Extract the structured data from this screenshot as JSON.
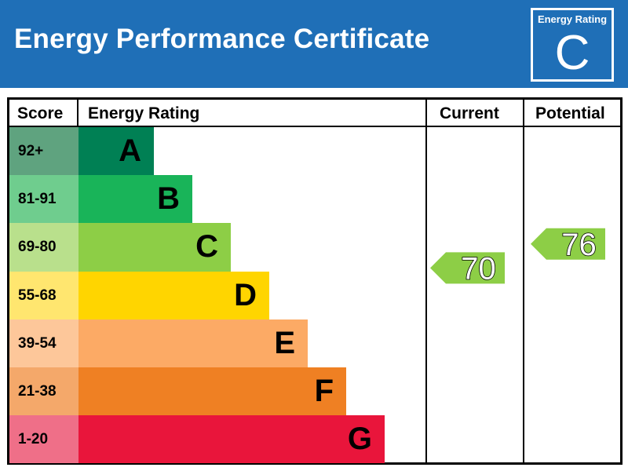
{
  "header": {
    "title": "Energy Performance Certificate",
    "rating_box_label": "Energy Rating",
    "rating_box_letter": "C",
    "background": "#1f6fb7"
  },
  "table": {
    "score_header": "Score",
    "rating_header": "Energy Rating",
    "current_header": "Current",
    "potential_header": "Potential"
  },
  "chart_data": {
    "type": "bar",
    "categories": [
      "A",
      "B",
      "C",
      "D",
      "E",
      "F",
      "G"
    ],
    "score_ranges": [
      "92+",
      "81-91",
      "69-80",
      "55-68",
      "39-54",
      "21-38",
      "1-20"
    ],
    "bar_colors": [
      "#008054",
      "#19b459",
      "#8dce46",
      "#ffd500",
      "#fcaa65",
      "#ef8023",
      "#e9153b"
    ],
    "score_cell_colors": [
      "#5fa37f",
      "#6fcd8e",
      "#b9e08c",
      "#ffe66f",
      "#fdc79a",
      "#f4a86a",
      "#ef6f88"
    ],
    "current": {
      "value": 70,
      "band": "C",
      "color": "#8dce46"
    },
    "potential": {
      "value": 76,
      "band": "C",
      "color": "#8dce46"
    }
  }
}
